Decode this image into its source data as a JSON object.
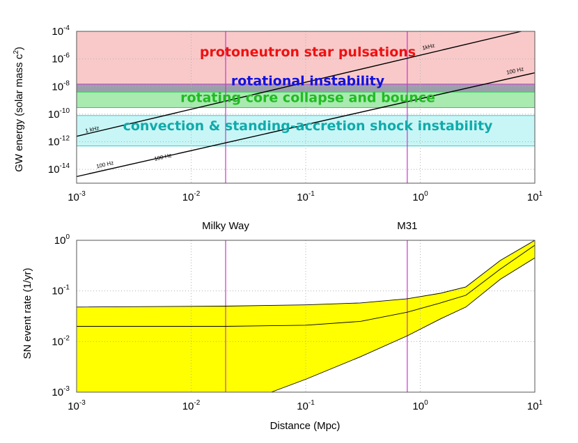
{
  "chart_data": [
    {
      "type": "line",
      "ylabel_main": "GW energy (solar mass c",
      "ylabel_sup": "2",
      "ylabel_tail": ")",
      "x_log": true,
      "y_log": true,
      "xlim": [
        0.001,
        10
      ],
      "ylim": [
        1e-15,
        0.0001
      ],
      "grid": true,
      "x_ticks": [
        {
          "value": 0.001,
          "base": "10",
          "exp": "-3"
        },
        {
          "value": 0.01,
          "base": "10",
          "exp": "-2"
        },
        {
          "value": 0.1,
          "base": "10",
          "exp": "-1"
        },
        {
          "value": 1,
          "base": "10",
          "exp": "0"
        },
        {
          "value": 10,
          "base": "10",
          "exp": "1"
        }
      ],
      "y_ticks": [
        {
          "value": 1e-14,
          "base": "10",
          "exp": "-14"
        },
        {
          "value": 1e-12,
          "base": "10",
          "exp": "-12"
        },
        {
          "value": 1e-10,
          "base": "10",
          "exp": "-10"
        },
        {
          "value": 1e-08,
          "base": "10",
          "exp": "-8"
        },
        {
          "value": 1e-06,
          "base": "10",
          "exp": "-6"
        },
        {
          "value": 0.0001,
          "base": "10",
          "exp": "-4"
        }
      ],
      "bands": [
        {
          "name": "protoneutron star pulsations",
          "y_range": [
            1e-08,
            0.0001
          ],
          "fill": "#f9c9c9",
          "edge": "#e05050",
          "text_color": "#ee1111",
          "label_y": 1.5e-06
        },
        {
          "name": "rotational instability",
          "y_range": [
            3e-09,
            1.5e-08
          ],
          "fill": "#9aa0aa",
          "edge": "#cc33cc",
          "text_color": "#1111dd",
          "label_y": 1.2e-08
        },
        {
          "name": "rotating core collapse and bounce",
          "y_range": [
            3e-10,
            4e-09
          ],
          "fill": "#a8eab0",
          "edge": "#33cc55",
          "text_color": "#22bb22",
          "label_y": 7.5e-10
        },
        {
          "name": "convection & standing-accretion shock instability",
          "y_range": [
            5e-13,
            8e-11
          ],
          "fill": "#c8f6f6",
          "edge": "#33cccc",
          "text_color": "#11aaaa",
          "label_y": 7e-12
        }
      ],
      "series": [
        {
          "name": "1 kHz",
          "x": [
            0.001,
            7.6
          ],
          "y": [
            2.5e-12,
            0.0001
          ],
          "labels": [
            {
              "text": "1 kHz",
              "x": 0.0012,
              "y": 4.5e-12
            },
            {
              "text": "1kHz",
              "x": 1.05,
              "y": 4.5e-06
            }
          ]
        },
        {
          "name": "100 Hz",
          "x": [
            0.001,
            10
          ],
          "y": [
            3e-15,
            1e-07
          ],
          "labels": [
            {
              "text": "100 Hz",
              "x": 0.0015,
              "y": 1.2e-14
            },
            {
              "text": "100 Hz",
              "x": 0.0048,
              "y": 4.2e-14
            },
            {
              "text": "100 Hz",
              "x": 5.7,
              "y": 7.5e-08
            }
          ]
        }
      ],
      "vlines": [
        0.02,
        0.77
      ]
    },
    {
      "type": "area",
      "xlabel": "Distance (Mpc)",
      "ylabel": "SN event rate (1/yr)",
      "x_log": true,
      "y_log": true,
      "xlim": [
        0.001,
        10
      ],
      "ylim": [
        0.001,
        1
      ],
      "grid": true,
      "x_ticks": [
        {
          "value": 0.001,
          "base": "10",
          "exp": "-3"
        },
        {
          "value": 0.01,
          "base": "10",
          "exp": "-2"
        },
        {
          "value": 0.1,
          "base": "10",
          "exp": "-1"
        },
        {
          "value": 1,
          "base": "10",
          "exp": "0"
        },
        {
          "value": 10,
          "base": "10",
          "exp": "1"
        }
      ],
      "y_ticks": [
        {
          "value": 0.001,
          "base": "10",
          "exp": "-3"
        },
        {
          "value": 0.01,
          "base": "10",
          "exp": "-2"
        },
        {
          "value": 0.1,
          "base": "10",
          "exp": "-1"
        },
        {
          "value": 1,
          "base": "10",
          "exp": "0"
        }
      ],
      "band_color": "#ffff00",
      "upper": {
        "x": [
          0.001,
          0.02,
          0.1,
          0.3,
          0.77,
          1.5,
          2.5,
          5,
          10
        ],
        "y": [
          0.048,
          0.05,
          0.053,
          0.058,
          0.07,
          0.09,
          0.12,
          0.4,
          1
        ]
      },
      "median": {
        "x": [
          0.001,
          0.02,
          0.1,
          0.3,
          0.77,
          1.5,
          2.5,
          5,
          10
        ],
        "y": [
          0.02,
          0.02,
          0.021,
          0.025,
          0.038,
          0.058,
          0.082,
          0.27,
          0.8
        ]
      },
      "lower": {
        "x": [
          0.05,
          0.1,
          0.3,
          0.77,
          1.5,
          2.5,
          5,
          10
        ],
        "y": [
          0.001,
          0.0018,
          0.005,
          0.013,
          0.028,
          0.048,
          0.17,
          0.45
        ]
      },
      "vlines": [
        {
          "x": 0.02,
          "label": "Milky Way"
        },
        {
          "x": 0.77,
          "label": "M31"
        }
      ]
    }
  ],
  "vline_color": "#cc33cc"
}
